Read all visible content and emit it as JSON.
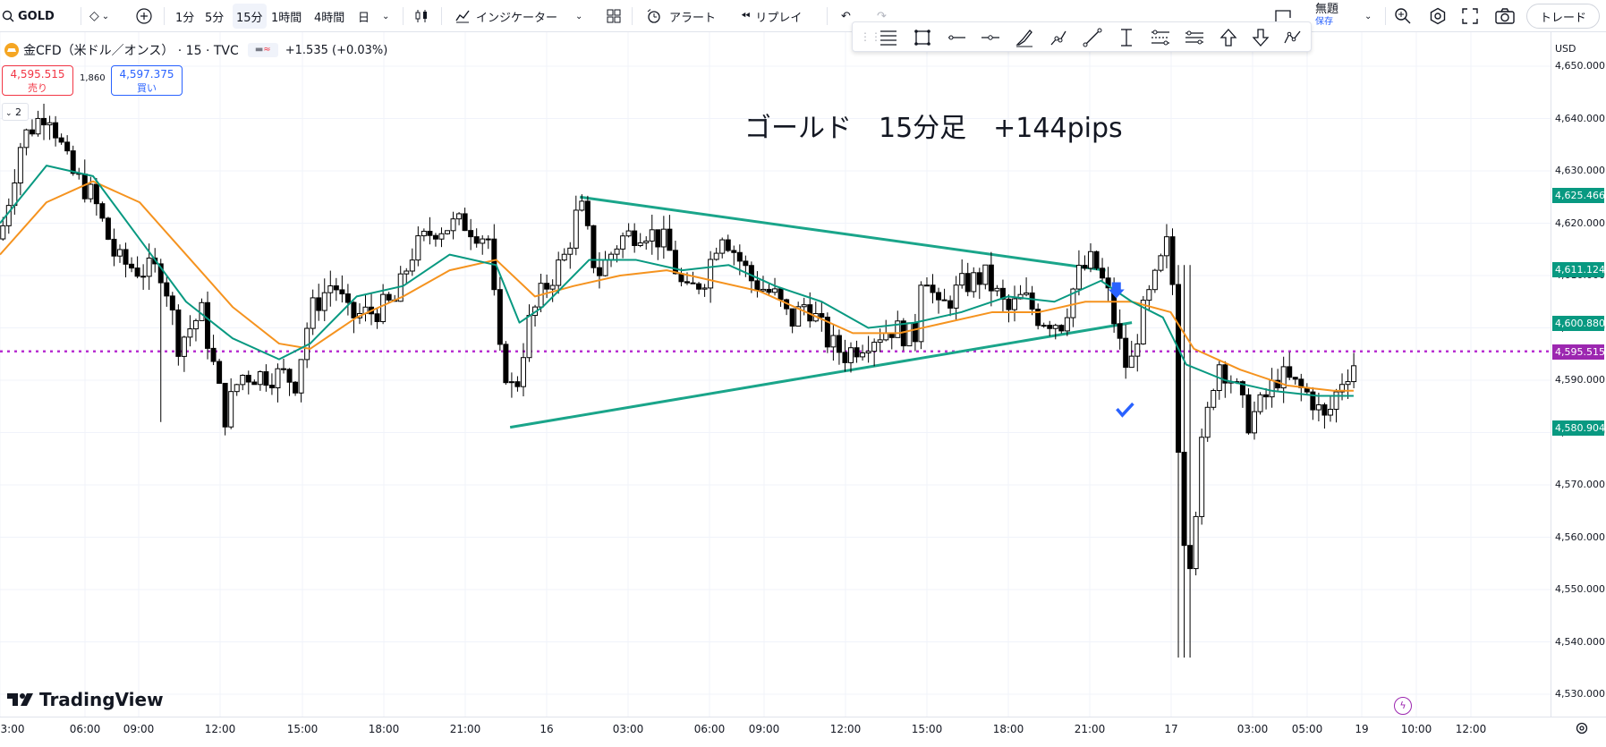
{
  "toolbar": {
    "symbol": "GOLD",
    "intervals": [
      "1分",
      "5分",
      "15分",
      "1時間",
      "4時間",
      "日"
    ],
    "active_interval": "15分",
    "indicators_label": "インジケーター",
    "alert_label": "アラート",
    "replay_label": "リプレイ",
    "layout_name": "無題",
    "save_label": "保存",
    "trade_label": "トレード"
  },
  "legend": {
    "symbol_title": "金CFD（米ドル／オンス） · 15 · TVC",
    "change": "+1.535 (+0.03%)",
    "sell_price": "4,595.515",
    "sell_label": "売り",
    "spread": "1,860",
    "buy_price": "4,597.375",
    "buy_label": "買い",
    "indicator_count": "2"
  },
  "overlay": {
    "annotation_text": "ゴールド　15分足　+144pips",
    "brand": "TradingView"
  },
  "axis": {
    "currency": "USD",
    "price_ticks": [
      "4,650.000",
      "4,640.000",
      "4,630.000",
      "4,620.000",
      "4,610.000",
      "4,600.000",
      "4,590.000",
      "4,580.000",
      "4,570.000",
      "4,560.000",
      "4,550.000",
      "4,540.000",
      "4,530.000"
    ],
    "price_tick_values": [
      4650,
      4640,
      4630,
      4620,
      4610,
      4600,
      4590,
      4580,
      4570,
      4560,
      4550,
      4540,
      4530
    ],
    "time_ticks": [
      "3:00",
      "06:00",
      "09:00",
      "12:00",
      "15:00",
      "18:00",
      "21:00",
      "16",
      "03:00",
      "06:00",
      "09:00",
      "12:00",
      "15:00",
      "18:00",
      "21:00",
      "17",
      "03:00",
      "05:00",
      "19",
      "10:00",
      "12:00"
    ],
    "highlighted_prices": [
      {
        "label": "4,625.466",
        "color": "#089981"
      },
      {
        "label": "4,611.124",
        "color": "#089981"
      },
      {
        "label": "4,600.880",
        "color": "#089981"
      },
      {
        "label": "4,595.515",
        "color": "#9c27b0"
      },
      {
        "label": "4,580.904",
        "color": "#089981"
      }
    ]
  },
  "chart_data": {
    "type": "candlestick",
    "symbol": "GOLD",
    "timeframe": "15",
    "ylim": [
      4528,
      4655
    ],
    "current_price": 4595.515,
    "horizontal_line": 4595.515,
    "colors": {
      "up": "#ffffff",
      "down": "#000000",
      "ma_fast": "#089981",
      "ma_slow": "#f5931f",
      "trendline": "#1aa58a",
      "hline": "#b830d1"
    },
    "trendlines": [
      {
        "from": [
          0.374,
          4625
        ],
        "to": [
          0.713,
          4611
        ]
      },
      {
        "from": [
          0.329,
          4581
        ],
        "to": [
          0.73,
          4601
        ]
      }
    ],
    "markers": [
      {
        "type": "arrow-down",
        "x": 0.72,
        "price": 4607,
        "color": "#2962ff"
      },
      {
        "type": "check",
        "x": 0.725,
        "price": 4584,
        "color": "#2962ff"
      }
    ],
    "keypoints": [
      [
        0.0,
        4617
      ],
      [
        0.014,
        4636
      ],
      [
        0.031,
        4642
      ],
      [
        0.045,
        4630
      ],
      [
        0.06,
        4625
      ],
      [
        0.075,
        4613
      ],
      [
        0.09,
        4611
      ],
      [
        0.105,
        4611
      ],
      [
        0.115,
        4597
      ],
      [
        0.13,
        4603
      ],
      [
        0.145,
        4583
      ],
      [
        0.155,
        4591
      ],
      [
        0.17,
        4591
      ],
      [
        0.185,
        4591
      ],
      [
        0.19,
        4589
      ],
      [
        0.2,
        4603
      ],
      [
        0.215,
        4609
      ],
      [
        0.225,
        4602
      ],
      [
        0.24,
        4603
      ],
      [
        0.255,
        4605
      ],
      [
        0.265,
        4614
      ],
      [
        0.28,
        4619
      ],
      [
        0.3,
        4620
      ],
      [
        0.315,
        4617
      ],
      [
        0.322,
        4595
      ],
      [
        0.332,
        4587
      ],
      [
        0.34,
        4600
      ],
      [
        0.35,
        4607
      ],
      [
        0.365,
        4614
      ],
      [
        0.374,
        4624
      ],
      [
        0.385,
        4610
      ],
      [
        0.4,
        4617
      ],
      [
        0.415,
        4619
      ],
      [
        0.43,
        4616
      ],
      [
        0.442,
        4606
      ],
      [
        0.455,
        4610
      ],
      [
        0.465,
        4619
      ],
      [
        0.475,
        4614
      ],
      [
        0.485,
        4609
      ],
      [
        0.5,
        4606
      ],
      [
        0.51,
        4601
      ],
      [
        0.52,
        4605
      ],
      [
        0.535,
        4597
      ],
      [
        0.545,
        4595
      ],
      [
        0.56,
        4598
      ],
      [
        0.575,
        4600
      ],
      [
        0.59,
        4598
      ],
      [
        0.595,
        4613
      ],
      [
        0.605,
        4603
      ],
      [
        0.62,
        4608
      ],
      [
        0.635,
        4610
      ],
      [
        0.65,
        4603
      ],
      [
        0.66,
        4606
      ],
      [
        0.67,
        4602
      ],
      [
        0.685,
        4601
      ],
      [
        0.695,
        4610
      ],
      [
        0.705,
        4613
      ],
      [
        0.715,
        4606
      ],
      [
        0.722,
        4597
      ],
      [
        0.728,
        4591
      ],
      [
        0.735,
        4601
      ],
      [
        0.745,
        4609
      ],
      [
        0.755,
        4618
      ],
      [
        0.762,
        4562
      ],
      [
        0.768,
        4556
      ],
      [
        0.775,
        4577
      ],
      [
        0.785,
        4594
      ],
      [
        0.795,
        4590
      ],
      [
        0.805,
        4582
      ],
      [
        0.815,
        4586
      ],
      [
        0.825,
        4591
      ],
      [
        0.835,
        4589
      ],
      [
        0.845,
        4587
      ],
      [
        0.855,
        4582
      ],
      [
        0.865,
        4590
      ],
      [
        0.875,
        4594
      ]
    ],
    "ma_fast": [
      [
        0.0,
        4620
      ],
      [
        0.03,
        4631
      ],
      [
        0.06,
        4629
      ],
      [
        0.09,
        4617
      ],
      [
        0.12,
        4605
      ],
      [
        0.15,
        4598
      ],
      [
        0.18,
        4594
      ],
      [
        0.2,
        4597
      ],
      [
        0.23,
        4606
      ],
      [
        0.26,
        4608
      ],
      [
        0.29,
        4614
      ],
      [
        0.32,
        4612
      ],
      [
        0.335,
        4601
      ],
      [
        0.35,
        4604
      ],
      [
        0.38,
        4613
      ],
      [
        0.41,
        4613
      ],
      [
        0.44,
        4611
      ],
      [
        0.47,
        4612
      ],
      [
        0.5,
        4608
      ],
      [
        0.53,
        4605
      ],
      [
        0.56,
        4600
      ],
      [
        0.59,
        4601
      ],
      [
        0.62,
        4603
      ],
      [
        0.65,
        4606
      ],
      [
        0.68,
        4605
      ],
      [
        0.71,
        4609
      ],
      [
        0.73,
        4605
      ],
      [
        0.75,
        4602
      ],
      [
        0.765,
        4593
      ],
      [
        0.79,
        4590
      ],
      [
        0.82,
        4588
      ],
      [
        0.85,
        4587
      ],
      [
        0.873,
        4587
      ]
    ],
    "ma_slow": [
      [
        0.0,
        4614
      ],
      [
        0.03,
        4624
      ],
      [
        0.06,
        4628
      ],
      [
        0.09,
        4624
      ],
      [
        0.12,
        4614
      ],
      [
        0.15,
        4604
      ],
      [
        0.18,
        4597
      ],
      [
        0.2,
        4596
      ],
      [
        0.23,
        4602
      ],
      [
        0.26,
        4606
      ],
      [
        0.29,
        4611
      ],
      [
        0.32,
        4613
      ],
      [
        0.345,
        4606
      ],
      [
        0.37,
        4608
      ],
      [
        0.4,
        4610
      ],
      [
        0.43,
        4611
      ],
      [
        0.46,
        4609
      ],
      [
        0.49,
        4607
      ],
      [
        0.52,
        4603
      ],
      [
        0.55,
        4599
      ],
      [
        0.58,
        4599
      ],
      [
        0.61,
        4601
      ],
      [
        0.64,
        4603
      ],
      [
        0.67,
        4603
      ],
      [
        0.7,
        4605
      ],
      [
        0.73,
        4605
      ],
      [
        0.755,
        4603
      ],
      [
        0.77,
        4596
      ],
      [
        0.8,
        4592
      ],
      [
        0.83,
        4589
      ],
      [
        0.86,
        4588
      ],
      [
        0.873,
        4588
      ]
    ]
  }
}
